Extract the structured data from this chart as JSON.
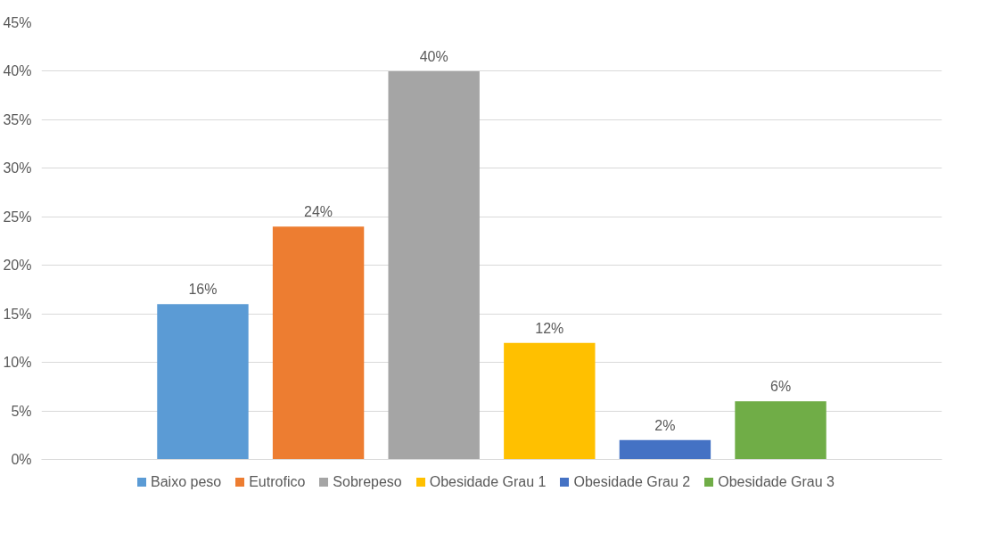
{
  "chart_data": {
    "type": "bar",
    "categories": [
      null
    ],
    "series": [
      {
        "name": "Baixo peso",
        "color": "#5b9bd5",
        "values": [
          16
        ],
        "value_labels": [
          "16%"
        ]
      },
      {
        "name": "Eutrofico",
        "color": "#ed7d31",
        "values": [
          24
        ],
        "value_labels": [
          "24%"
        ]
      },
      {
        "name": "Sobrepeso",
        "color": "#a5a5a5",
        "values": [
          40
        ],
        "value_labels": [
          "40%"
        ]
      },
      {
        "name": "Obesidade Grau 1",
        "color": "#ffc000",
        "values": [
          12
        ],
        "value_labels": [
          "12%"
        ]
      },
      {
        "name": "Obesidade Grau 2",
        "color": "#4472c4",
        "values": [
          2
        ],
        "value_labels": [
          "2%"
        ]
      },
      {
        "name": "Obesidade Grau 3",
        "color": "#70ad47",
        "values": [
          6
        ],
        "value_labels": [
          "6%"
        ]
      }
    ],
    "ylim": [
      0,
      45
    ],
    "yticks": [
      {
        "value": 0,
        "label": "0%"
      },
      {
        "value": 5,
        "label": "5%"
      },
      {
        "value": 10,
        "label": "10%"
      },
      {
        "value": 15,
        "label": "15%"
      },
      {
        "value": 20,
        "label": "20%"
      },
      {
        "value": 25,
        "label": "25%"
      },
      {
        "value": 30,
        "label": "30%"
      },
      {
        "value": 35,
        "label": "35%"
      },
      {
        "value": 40,
        "label": "40%"
      },
      {
        "value": 45,
        "label": "45%"
      }
    ],
    "grid": "y",
    "legend": "bottom"
  }
}
